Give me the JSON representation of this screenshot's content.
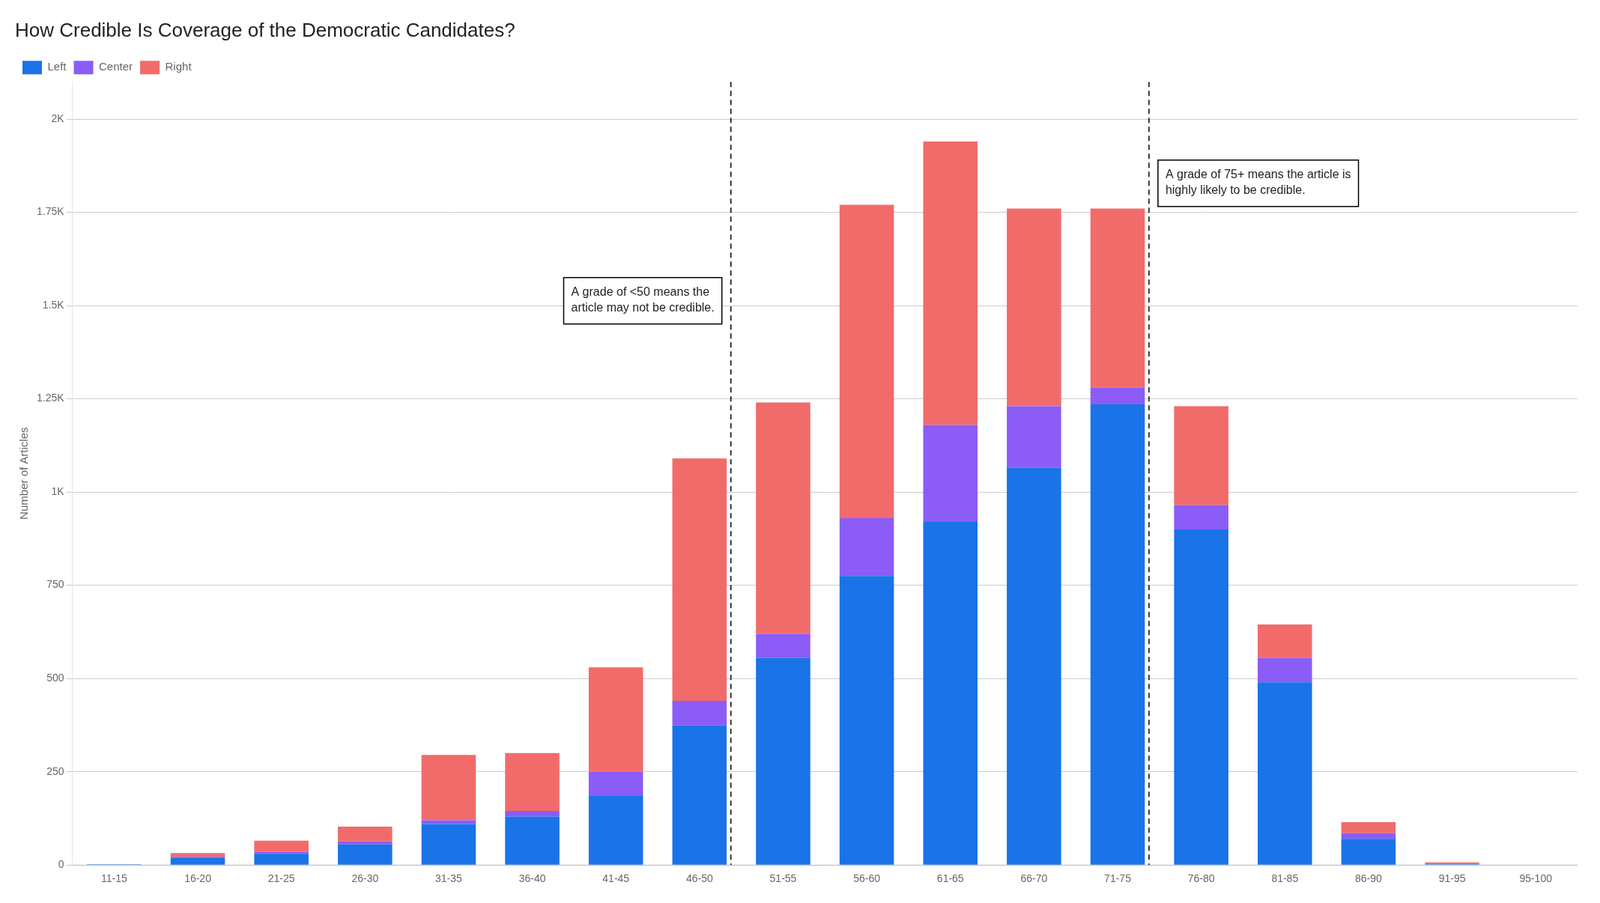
{
  "chart_data": {
    "type": "bar",
    "title": "How Credible Is Coverage of the Democratic Candidates?",
    "ylabel": "Number of Articles",
    "categories": [
      "11-15",
      "16-20",
      "21-25",
      "26-30",
      "31-35",
      "36-40",
      "41-45",
      "46-50",
      "51-55",
      "56-60",
      "61-65",
      "66-70",
      "71-75",
      "76-80",
      "81-85",
      "86-90",
      "91-95",
      "95-100"
    ],
    "series": [
      {
        "name": "Left",
        "color": "#1a73e8",
        "values": [
          2,
          20,
          30,
          55,
          110,
          130,
          185,
          375,
          555,
          775,
          920,
          1065,
          1235,
          900,
          490,
          70,
          2,
          0
        ]
      },
      {
        "name": "Center",
        "color": "#8b5cf6",
        "values": [
          0,
          2,
          5,
          8,
          10,
          15,
          65,
          65,
          65,
          155,
          260,
          165,
          45,
          65,
          65,
          15,
          2,
          0
        ]
      },
      {
        "name": "Right",
        "color": "#f26b6b",
        "values": [
          0,
          10,
          30,
          40,
          175,
          155,
          280,
          650,
          620,
          840,
          760,
          530,
          480,
          265,
          90,
          30,
          3,
          0
        ]
      }
    ],
    "stacked": true,
    "annotations": [
      {
        "text": "A grade of <50 means the\narticle may not be credible.",
        "x": "46-50"
      },
      {
        "text": "A grade of 75+ means the article is\nhighly likely to be credible.",
        "x": "71-75"
      }
    ],
    "ylim": [
      0,
      2100
    ],
    "yticks": [
      0,
      250,
      500,
      750,
      {
        "value": 1000,
        "label": "1K"
      },
      {
        "value": 1250,
        "label": "1.25K"
      },
      {
        "value": 1500,
        "label": "1.5K"
      },
      {
        "value": 1750,
        "label": "1.75K"
      },
      {
        "value": 2000,
        "label": "2K"
      }
    ],
    "grid": true,
    "legend": "top"
  }
}
